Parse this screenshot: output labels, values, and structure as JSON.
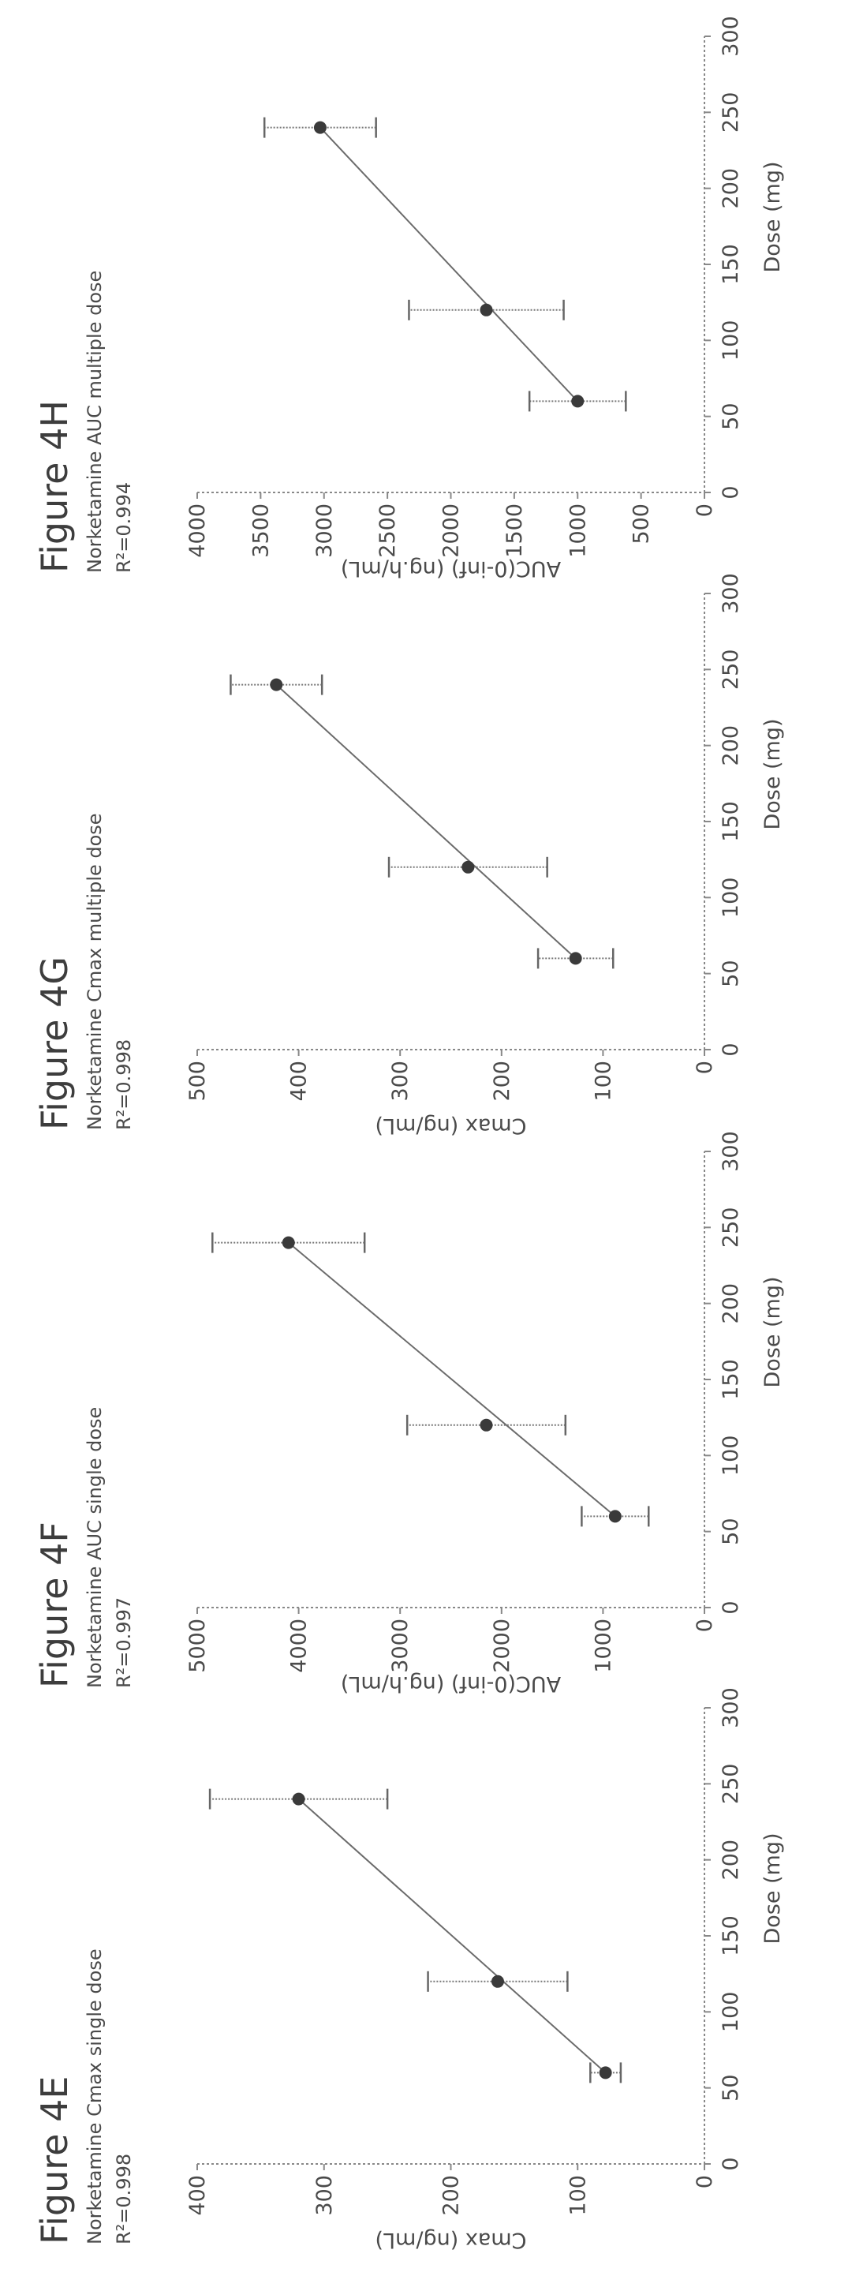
{
  "chart_data": [
    {
      "type": "scatter",
      "figure_label": "Figure 4E",
      "title": "Norketamine Cmax single dose",
      "r_squared": "R²=0.998",
      "xlabel": "Dose (mg)",
      "ylabel": "Cmax (ng/mL)",
      "xlim": [
        0,
        300
      ],
      "ylim": [
        0,
        400
      ],
      "xticks": [
        0,
        50,
        100,
        150,
        200,
        250,
        300
      ],
      "yticks": [
        0,
        100,
        200,
        300,
        400
      ],
      "x": [
        60,
        120,
        240
      ],
      "y": [
        78,
        163,
        320
      ],
      "error": [
        12,
        55,
        70
      ],
      "fit_line": true
    },
    {
      "type": "scatter",
      "figure_label": "Figure 4F",
      "title": "Norketamine AUC single dose",
      "r_squared": "R²=0.997",
      "xlabel": "Dose (mg)",
      "ylabel": "AUC(0-inf) (ng.h/mL)",
      "xlim": [
        0,
        300
      ],
      "ylim": [
        0,
        5000
      ],
      "xticks": [
        0,
        50,
        100,
        150,
        200,
        250,
        300
      ],
      "yticks": [
        0,
        1000,
        2000,
        3000,
        4000,
        5000
      ],
      "x": [
        60,
        120,
        240
      ],
      "y": [
        880,
        2150,
        4100
      ],
      "error": [
        330,
        780,
        750
      ],
      "fit_line": true
    },
    {
      "type": "scatter",
      "figure_label": "Figure 4G",
      "title": "Norketamine Cmax multiple dose",
      "r_squared": "R²=0.998",
      "xlabel": "Dose (mg)",
      "ylabel": "Cmax (ng/mL)",
      "xlim": [
        0,
        300
      ],
      "ylim": [
        0,
        500
      ],
      "xticks": [
        0,
        50,
        100,
        150,
        200,
        250,
        300
      ],
      "yticks": [
        0,
        100,
        200,
        300,
        400,
        500
      ],
      "x": [
        60,
        120,
        240
      ],
      "y": [
        127,
        233,
        422
      ],
      "error": [
        37,
        78,
        45
      ],
      "fit_line": true
    },
    {
      "type": "scatter",
      "figure_label": "Figure 4H",
      "title": "Norketamine AUC multiple dose",
      "r_squared": "R²=0.994",
      "xlabel": "Dose (mg)",
      "ylabel": "AUC(0-inf) (ng.h/mL)",
      "xlim": [
        0,
        300
      ],
      "ylim": [
        0,
        4000
      ],
      "xticks": [
        0,
        50,
        100,
        150,
        200,
        250,
        300
      ],
      "yticks": [
        0,
        500,
        1000,
        1500,
        2000,
        2500,
        3000,
        3500,
        4000
      ],
      "x": [
        60,
        120,
        240
      ],
      "y": [
        1000,
        1720,
        3030
      ],
      "error": [
        380,
        610,
        440
      ],
      "fit_line": true
    }
  ]
}
